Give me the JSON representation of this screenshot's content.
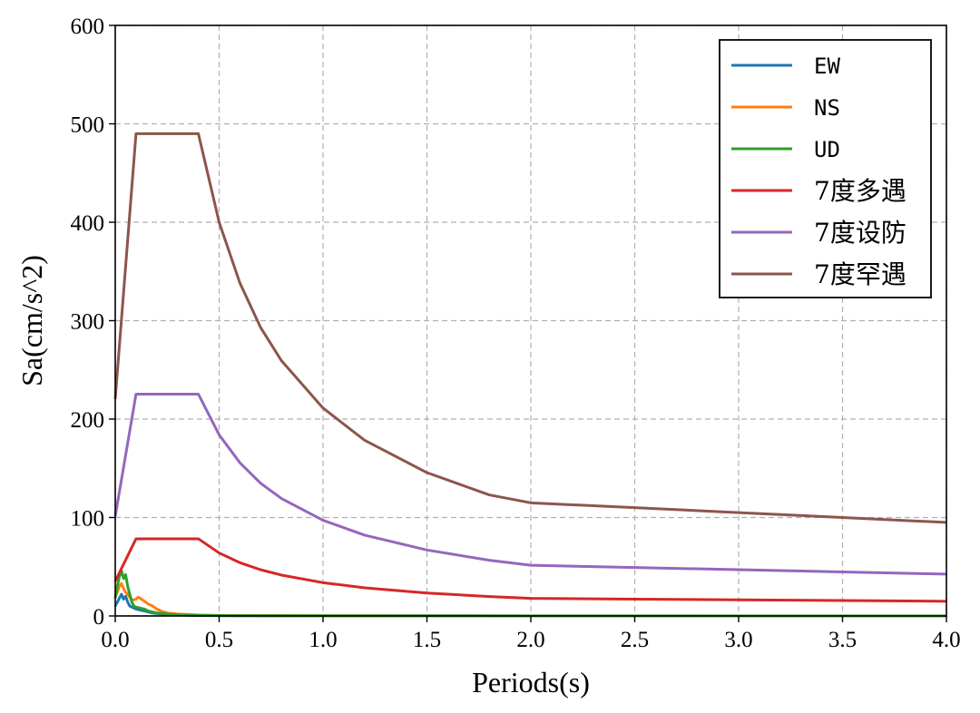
{
  "chart_data": {
    "type": "line",
    "title": "",
    "xlabel": "Periods(s)",
    "ylabel": "Sa(cm/s^2)",
    "xlim": [
      0,
      4.0
    ],
    "ylim": [
      0,
      600
    ],
    "xticks": [
      "0.0",
      "0.5",
      "1.0",
      "1.5",
      "2.0",
      "2.5",
      "3.0",
      "3.5",
      "4.0"
    ],
    "yticks": [
      "0",
      "100",
      "200",
      "300",
      "400",
      "500",
      "600"
    ],
    "grid": true,
    "legend_position": "top-right",
    "series": [
      {
        "name": "EW",
        "color": "#1f77b4",
        "x": [
          0.0,
          0.01,
          0.02,
          0.03,
          0.04,
          0.05,
          0.06,
          0.07,
          0.08,
          0.09,
          0.1,
          0.12,
          0.14,
          0.16,
          0.18,
          0.2,
          0.25,
          0.3,
          0.4,
          0.5,
          1.0,
          2.0,
          3.0,
          4.0
        ],
        "y": [
          10,
          14,
          18,
          22,
          17,
          20,
          14,
          10,
          9,
          8,
          7,
          6,
          5,
          4,
          3,
          2.5,
          1.5,
          1.0,
          0.5,
          0.3,
          0.1,
          0.05,
          0.03,
          0.02
        ]
      },
      {
        "name": "NS",
        "color": "#ff7f0e",
        "x": [
          0.0,
          0.01,
          0.02,
          0.03,
          0.04,
          0.05,
          0.06,
          0.08,
          0.1,
          0.11,
          0.12,
          0.14,
          0.16,
          0.18,
          0.2,
          0.22,
          0.25,
          0.3,
          0.4,
          0.5,
          1.0,
          2.0,
          3.0,
          4.0
        ],
        "y": [
          20,
          24,
          30,
          33,
          28,
          24,
          22,
          16,
          17,
          19,
          18,
          15,
          12,
          10,
          7,
          5,
          3,
          2,
          1,
          0.5,
          0.2,
          0.1,
          0.05,
          0.03
        ]
      },
      {
        "name": "UD",
        "color": "#2ca02c",
        "x": [
          0.0,
          0.01,
          0.02,
          0.03,
          0.04,
          0.05,
          0.06,
          0.07,
          0.08,
          0.09,
          0.1,
          0.12,
          0.14,
          0.16,
          0.18,
          0.2,
          0.25,
          0.3,
          0.4,
          0.5,
          1.0,
          2.0,
          3.0,
          4.0
        ],
        "y": [
          18,
          30,
          40,
          46,
          38,
          42,
          30,
          22,
          14,
          10,
          9,
          8,
          7,
          5,
          4,
          3,
          2,
          1,
          0.5,
          0.3,
          0.1,
          0.05,
          0.03,
          0.02
        ]
      },
      {
        "name": "7度多遇",
        "color": "#d62728",
        "x": [
          0.0,
          0.1,
          0.4,
          0.5,
          0.6,
          0.7,
          0.8,
          1.0,
          1.2,
          1.5,
          1.8,
          2.0,
          2.5,
          3.0,
          3.5,
          4.0
        ],
        "y": [
          35.3,
          78.4,
          78.4,
          64.0,
          54.1,
          46.9,
          41.5,
          33.8,
          28.6,
          23.3,
          19.7,
          17.9,
          17.1,
          16.4,
          15.7,
          14.9
        ]
      },
      {
        "name": "7度设防",
        "color": "#9467bd",
        "x": [
          0.0,
          0.1,
          0.4,
          0.5,
          0.6,
          0.7,
          0.8,
          1.0,
          1.2,
          1.5,
          1.8,
          2.0,
          2.5,
          3.0,
          3.5,
          4.0
        ],
        "y": [
          101.3,
          225.4,
          225.4,
          184.0,
          155.6,
          134.7,
          119.3,
          97.2,
          82.1,
          67.0,
          56.6,
          51.5,
          49.2,
          47.0,
          44.7,
          42.5
        ]
      },
      {
        "name": "7度罕遇",
        "color": "#8c564b",
        "x": [
          0.0,
          0.1,
          0.4,
          0.5,
          0.6,
          0.7,
          0.8,
          1.0,
          1.2,
          1.5,
          1.8,
          2.0,
          2.5,
          3.0,
          3.5,
          4.0
        ],
        "y": [
          220.5,
          490.0,
          490.0,
          400.0,
          338.2,
          292.9,
          259.3,
          211.2,
          178.5,
          145.6,
          123.0,
          114.9,
          110.0,
          105.0,
          100.0,
          95.0
        ]
      }
    ]
  }
}
